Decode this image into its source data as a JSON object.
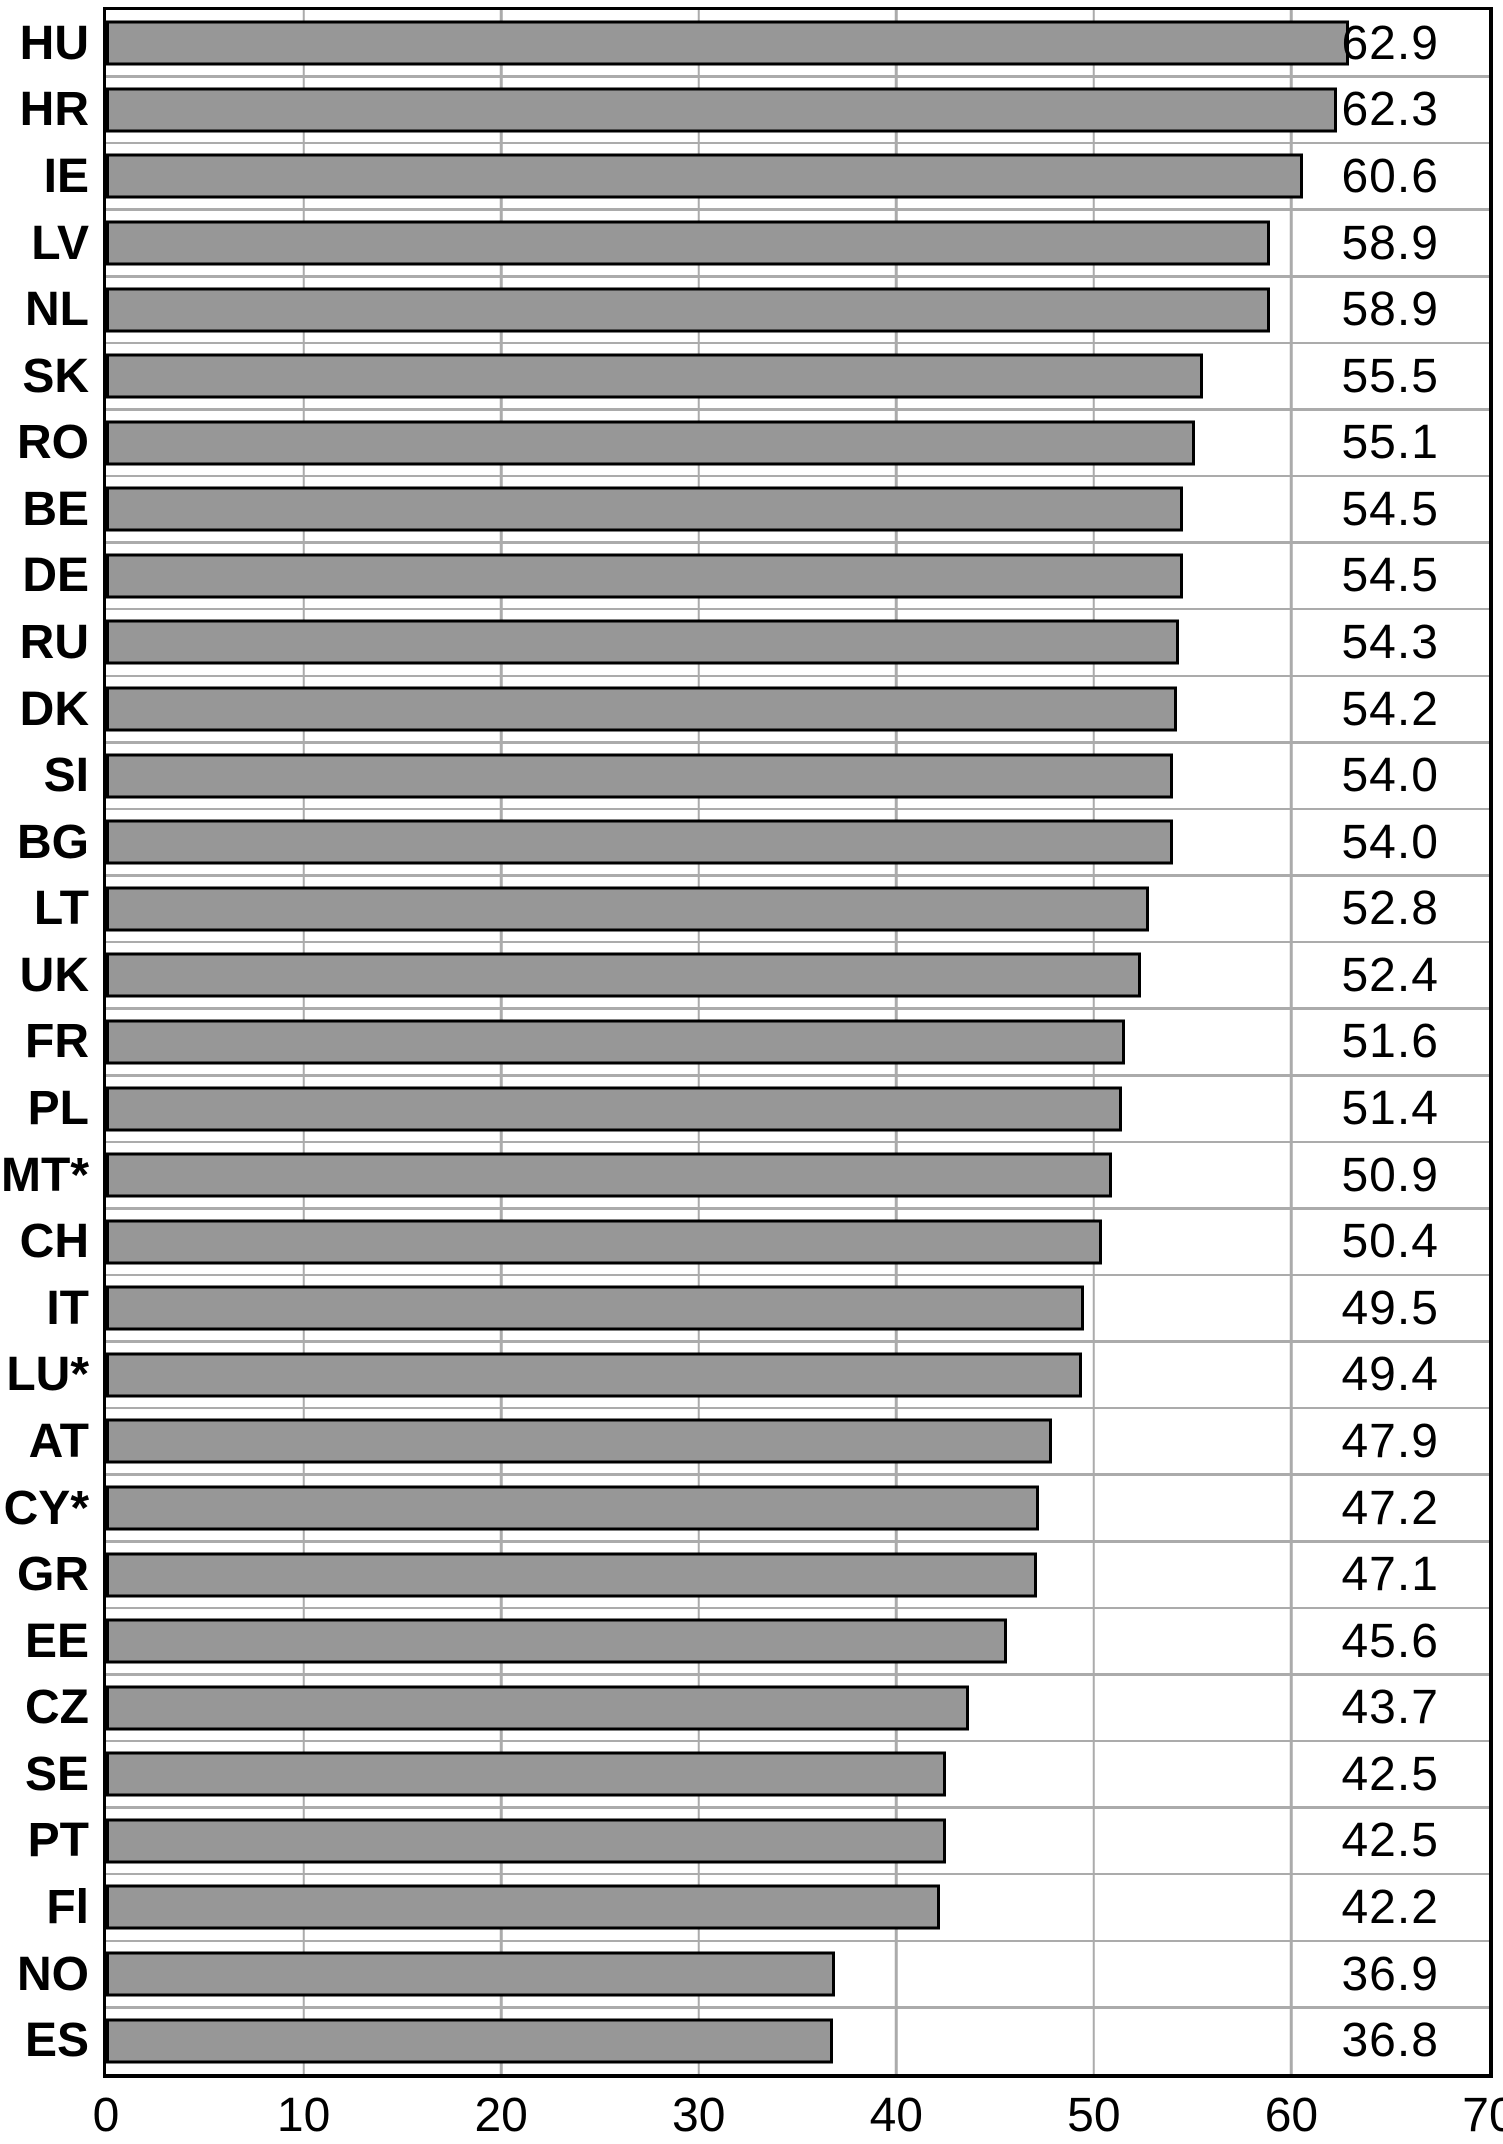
{
  "chart_data": {
    "type": "bar",
    "orientation": "horizontal",
    "title": "",
    "xlabel": "",
    "ylabel": "",
    "categories": [
      "HU",
      "HR",
      "IE",
      "LV",
      "NL",
      "SK",
      "RO",
      "BE",
      "DE",
      "RU",
      "DK",
      "SI",
      "BG",
      "LT",
      "UK",
      "FR",
      "PL",
      "MT*",
      "CH",
      "IT",
      "LU*",
      "AT",
      "CY*",
      "GR",
      "EE",
      "CZ",
      "SE",
      "PT",
      "Fl",
      "NO",
      "ES"
    ],
    "values": [
      62.9,
      62.3,
      60.6,
      58.9,
      58.9,
      55.5,
      55.1,
      54.5,
      54.5,
      54.3,
      54.2,
      54.0,
      54.0,
      52.8,
      52.4,
      51.6,
      51.4,
      50.9,
      50.4,
      49.5,
      49.4,
      47.9,
      47.2,
      47.1,
      45.6,
      43.7,
      42.5,
      42.5,
      42.2,
      36.9,
      36.8
    ],
    "value_labels": [
      "62.9",
      "62.3",
      "60.6",
      "58.9",
      "58.9",
      "55.5",
      "55.1",
      "54.5",
      "54.5",
      "54.3",
      "54.2",
      "54.0",
      "54.0",
      "52.8",
      "52.4",
      "51.6",
      "51.4",
      "50.9",
      "50.4",
      "49.5",
      "49.4",
      "47.9",
      "47.2",
      "47.1",
      "45.6",
      "43.7",
      "42.5",
      "42.5",
      "42.2",
      "36.9",
      "36.8"
    ],
    "xlim": [
      0,
      70
    ],
    "x_ticks": [
      "0",
      "10",
      "20",
      "30",
      "40",
      "50",
      "60",
      "70"
    ],
    "grid": "vertical-major-and-category-separators",
    "legend": "none",
    "colors": {
      "bar_fill": "#979797",
      "bar_border": "#000000",
      "gridline": "#ababab",
      "frame": "#000000",
      "text": "#000000",
      "background": "#ffffff"
    }
  }
}
